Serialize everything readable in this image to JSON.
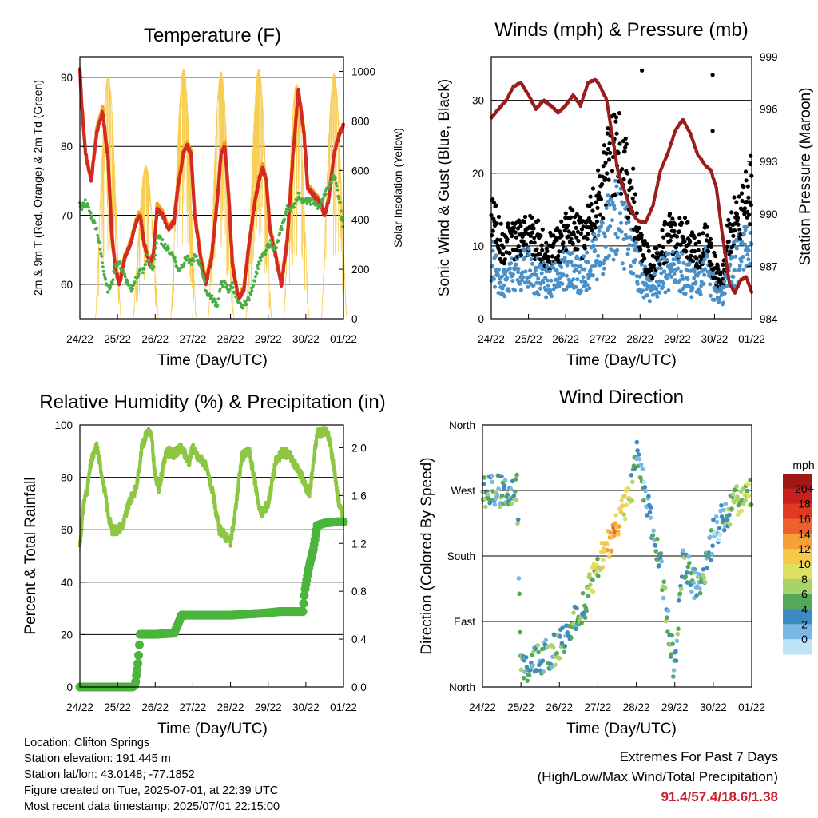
{
  "chart_data": [
    {
      "type": "line",
      "title": "Temperature (F)",
      "xlabel": "Time (Day/UTC)",
      "ylabel": "2m & 9m T (Red, Orange) & 2m Td (Green)",
      "y2label": "Solar Insolation (Yellow)",
      "x_ticks": [
        "24/22",
        "25/22",
        "26/22",
        "27/22",
        "28/22",
        "29/22",
        "30/22",
        "01/22"
      ],
      "y_ticks": [
        60,
        70,
        80,
        90
      ],
      "y2_ticks": [
        0,
        200,
        400,
        600,
        800,
        1000
      ],
      "ylim": [
        55,
        93
      ],
      "y2lim": [
        0,
        1060
      ],
      "grid": "horizontal",
      "x_days": [
        0,
        0.05,
        0.15,
        0.3,
        0.45,
        0.6,
        0.75,
        0.85,
        0.95,
        1.05,
        1.2,
        1.35,
        1.5,
        1.6,
        1.7,
        1.8,
        1.85,
        1.95,
        2.05,
        2.2,
        2.35,
        2.5,
        2.6,
        2.75,
        2.85,
        2.95,
        3.05,
        3.2,
        3.35,
        3.5,
        3.65,
        3.75,
        3.85,
        3.95,
        4.05,
        4.2,
        4.35,
        4.5,
        4.65,
        4.75,
        4.85,
        4.95,
        5.05,
        5.2,
        5.35,
        5.5,
        5.65,
        5.8,
        5.95,
        6.05,
        6.2,
        6.35,
        6.5,
        6.6,
        6.75,
        6.9,
        7.0
      ],
      "series": [
        {
          "name": "2m T",
          "color": "#d42a22",
          "values": [
            91.4,
            86,
            79,
            75,
            82,
            85,
            78,
            67,
            62,
            60,
            64,
            66,
            69,
            70,
            66,
            64,
            63,
            64,
            71,
            70,
            68,
            69,
            74,
            79,
            80,
            79,
            70,
            64,
            60,
            64,
            72,
            79,
            80,
            73,
            63,
            58,
            59,
            66,
            72,
            75,
            77,
            75,
            68,
            64,
            60,
            66,
            78,
            88,
            82,
            74,
            73,
            72,
            70,
            72,
            79,
            82,
            83
          ]
        },
        {
          "name": "9m T",
          "color": "#f5a020",
          "values": [
            91.2,
            85.8,
            79,
            75.2,
            82.5,
            85.5,
            78.5,
            67.3,
            62.5,
            60.5,
            64.3,
            66.2,
            69.5,
            70.5,
            66.3,
            64.3,
            63.4,
            64.3,
            71.5,
            70.5,
            68.4,
            69.4,
            74.5,
            79.5,
            80.5,
            79.3,
            70.4,
            64.5,
            60.5,
            64.6,
            72.6,
            79.6,
            80.4,
            73.3,
            63.4,
            58.4,
            59.5,
            66.5,
            72.5,
            75.5,
            77.5,
            75.3,
            68.3,
            64.3,
            60.4,
            66.4,
            78.4,
            88.2,
            82.3,
            74.3,
            73.3,
            72.3,
            70.3,
            72.3,
            79.2,
            82.1,
            82.8
          ]
        },
        {
          "name": "2m Td",
          "color": "#4aae44",
          "values": [
            72,
            71,
            72,
            70,
            68,
            63,
            59,
            60,
            63,
            63,
            61,
            59,
            61,
            62,
            62,
            64,
            63,
            62,
            67,
            66,
            65,
            64,
            62,
            63,
            64,
            63,
            64,
            63,
            59,
            58,
            57,
            60,
            60,
            59,
            60,
            57,
            57,
            58,
            61,
            63,
            64,
            65,
            66,
            65,
            68,
            71,
            71,
            73,
            72,
            72,
            72,
            71,
            73,
            74,
            76,
            72,
            68
          ]
        },
        {
          "name": "Solar Insolation",
          "color": "#f7cd52",
          "axis": "y2",
          "day_peak_centers": [
            0.75,
            1.75,
            2.75,
            3.75,
            4.75,
            5.75,
            6.75
          ],
          "day_peaks": [
            980,
            620,
            1010,
            1000,
            1010,
            950,
            990
          ]
        }
      ]
    },
    {
      "type": "scatter",
      "title": "Winds (mph) & Pressure (mb)",
      "xlabel": "Time (Day/UTC)",
      "ylabel": "Sonic Wind & Gust (Blue, Black)",
      "y2label": "Station Pressure (Maroon)",
      "x_ticks": [
        "24/22",
        "25/22",
        "26/22",
        "27/22",
        "28/22",
        "29/22",
        "30/22",
        "01/22"
      ],
      "y_ticks": [
        0,
        10,
        20,
        30
      ],
      "y2_ticks": [
        984,
        987,
        990,
        993,
        996,
        999
      ],
      "ylim": [
        0,
        36
      ],
      "y2lim": [
        984,
        999
      ],
      "grid": "horizontal",
      "wind_profile": {
        "x_days": [
          0,
          0.3,
          0.6,
          0.9,
          1.2,
          1.5,
          1.8,
          2.1,
          2.4,
          2.7,
          3.0,
          3.2,
          3.4,
          3.6,
          3.8,
          4.0,
          4.3,
          4.6,
          4.9,
          5.2,
          5.5,
          5.8,
          6.0,
          6.2,
          6.4,
          6.6,
          6.8,
          7.0
        ],
        "wind": [
          8,
          5,
          6,
          7,
          6,
          5,
          6,
          7,
          6,
          8,
          10,
          13,
          14,
          12,
          10,
          6,
          4,
          6,
          7,
          6,
          5,
          7,
          4,
          3,
          7,
          8,
          9,
          10
        ],
        "gust": [
          14,
          10,
          11,
          12,
          11,
          9,
          10,
          12,
          11,
          14,
          18,
          22,
          23,
          20,
          17,
          10,
          7,
          10,
          12,
          11,
          9,
          11,
          7,
          5,
          12,
          14,
          16,
          18
        ]
      },
      "gust_outliers": [
        [
          4.05,
          34.1
        ],
        [
          5.95,
          33.5
        ],
        [
          5.95,
          25.8
        ]
      ],
      "series": [
        {
          "name": "Wind",
          "color": "#4a90c8"
        },
        {
          "name": "Gust",
          "color": "#000000"
        },
        {
          "name": "Station Pressure",
          "color": "#9c1c1c",
          "axis": "y2",
          "x_days": [
            0,
            0.2,
            0.4,
            0.6,
            0.8,
            1.0,
            1.2,
            1.4,
            1.6,
            1.8,
            2.0,
            2.2,
            2.4,
            2.6,
            2.8,
            2.95,
            3.1,
            3.25,
            3.4,
            3.6,
            3.8,
            3.95,
            4.15,
            4.35,
            4.55,
            4.75,
            4.95,
            5.15,
            5.35,
            5.55,
            5.75,
            5.9,
            6.05,
            6.2,
            6.4,
            6.55,
            6.7,
            6.85,
            7.0
          ],
          "values": [
            995.5,
            996,
            996.5,
            997.3,
            997.5,
            996.8,
            996,
            996.5,
            996.2,
            995.8,
            996.2,
            996.8,
            996.2,
            997.5,
            997.7,
            997.2,
            996.5,
            994.5,
            992.5,
            991.2,
            990,
            989.6,
            989.5,
            990.5,
            992.5,
            993.5,
            994.8,
            995.4,
            994.6,
            993.4,
            992.8,
            992.5,
            991.5,
            989,
            986,
            985.5,
            986.2,
            986.4,
            985.5
          ]
        }
      ]
    },
    {
      "type": "line",
      "title": "Relative Humidity (%) & Precipitation (in)",
      "xlabel": "Time (Day/UTC)",
      "ylabel": "Percent & Total Rainfall",
      "x_ticks": [
        "24/22",
        "25/22",
        "26/22",
        "27/22",
        "28/22",
        "29/22",
        "30/22",
        "01/22"
      ],
      "y_ticks": [
        0,
        20,
        40,
        60,
        80,
        100
      ],
      "y2_ticks": [
        "0.0",
        "0.4",
        "0.8",
        "1.2",
        "1.6",
        "2.0"
      ],
      "ylim": [
        0,
        100
      ],
      "y2lim": [
        0,
        2.19
      ],
      "grid": "horizontal",
      "series": [
        {
          "name": "Relative Humidity",
          "color": "#8cc642",
          "x_days": [
            0,
            0.1,
            0.2,
            0.3,
            0.45,
            0.6,
            0.75,
            0.85,
            1.0,
            1.15,
            1.3,
            1.5,
            1.65,
            1.8,
            1.9,
            2.0,
            2.1,
            2.3,
            2.5,
            2.7,
            2.9,
            3.0,
            3.1,
            3.3,
            3.5,
            3.7,
            3.85,
            4.0,
            4.1,
            4.3,
            4.5,
            4.7,
            4.8,
            5.0,
            5.2,
            5.4,
            5.6,
            5.75,
            5.9,
            6.0,
            6.1,
            6.3,
            6.5,
            6.6,
            6.75,
            6.85,
            7.0
          ],
          "values": [
            54,
            70,
            76,
            86,
            92,
            80,
            66,
            60,
            60,
            62,
            70,
            76,
            92,
            98,
            96,
            80,
            76,
            90,
            89,
            91,
            86,
            92,
            88,
            86,
            76,
            60,
            58,
            55,
            64,
            88,
            90,
            74,
            66,
            70,
            86,
            90,
            88,
            84,
            80,
            76,
            74,
            97,
            98,
            96,
            84,
            72,
            64
          ]
        },
        {
          "name": "Total Rainfall",
          "color": "#4ab43c",
          "axis": "y2",
          "x_days": [
            0,
            1.0,
            1.2,
            1.4,
            1.47,
            1.55,
            1.6,
            2.0,
            2.5,
            2.6,
            2.7,
            3.0,
            3.5,
            4.0,
            4.5,
            5.0,
            5.3,
            5.55,
            5.8,
            5.92,
            5.97,
            6.05,
            6.12,
            6.2,
            6.3,
            6.5,
            6.8,
            7.0
          ],
          "values": [
            0,
            0,
            0,
            0,
            0.02,
            0.22,
            0.44,
            0.44,
            0.45,
            0.52,
            0.6,
            0.6,
            0.6,
            0.6,
            0.61,
            0.62,
            0.63,
            0.63,
            0.63,
            0.63,
            0.8,
            0.95,
            1.05,
            1.15,
            1.35,
            1.37,
            1.38,
            1.38
          ]
        }
      ]
    },
    {
      "type": "scatter",
      "title": "Wind Direction",
      "xlabel": "Time (Day/UTC)",
      "ylabel": "Direction (Colored By Speed)",
      "x_ticks": [
        "24/22",
        "25/22",
        "26/22",
        "27/22",
        "28/22",
        "29/22",
        "30/22",
        "01/22"
      ],
      "y_tick_labels": [
        "North",
        "East",
        "South",
        "West",
        "North"
      ],
      "y_tick_values": [
        0,
        90,
        180,
        270,
        360
      ],
      "ylim": [
        0,
        360
      ],
      "grid": "horizontal",
      "direction_profile": {
        "x_days": [
          0,
          0.2,
          0.5,
          0.9,
          1.0,
          1.1,
          1.5,
          2.0,
          2.3,
          2.7,
          3.0,
          3.3,
          3.6,
          3.9,
          4.0,
          4.3,
          4.6,
          4.8,
          5.0,
          5.2,
          5.5,
          5.8,
          6.0,
          6.3,
          6.6,
          7.0
        ],
        "deg": [
          270,
          270,
          268,
          275,
          40,
          25,
          40,
          55,
          80,
          120,
          170,
          200,
          240,
          275,
          320,
          250,
          180,
          100,
          20,
          180,
          140,
          160,
          210,
          235,
          255,
          272
        ]
      },
      "colorbar": {
        "title": "mph",
        "labels": [
          "20+",
          "18",
          "16",
          "14",
          "12",
          "10",
          "8",
          "6",
          "4",
          "2",
          "0"
        ],
        "colors": [
          "#a01818",
          "#c8201e",
          "#e03a24",
          "#ee6030",
          "#f5a038",
          "#f7c84a",
          "#e0e060",
          "#a8d26a",
          "#55a85a",
          "#3e8ac4",
          "#7cb8e4",
          "#bfe3f7"
        ]
      }
    }
  ],
  "info": {
    "location": "Location: Clifton Springs",
    "elevation": "Station elevation: 191.445 m",
    "latlon": "Station lat/lon: 43.0148; -77.1852",
    "created": "Figure created on Tue, 2025-07-01, at 22:39 UTC",
    "recent": "Most recent data timestamp: 2025/07/01 22:15:00"
  },
  "extremes": {
    "title": "Extremes For Past 7 Days",
    "subtitle": "(High/Low/Max Wind/Total Precipitation)",
    "values": "91.4/57.4/18.6/1.38"
  }
}
